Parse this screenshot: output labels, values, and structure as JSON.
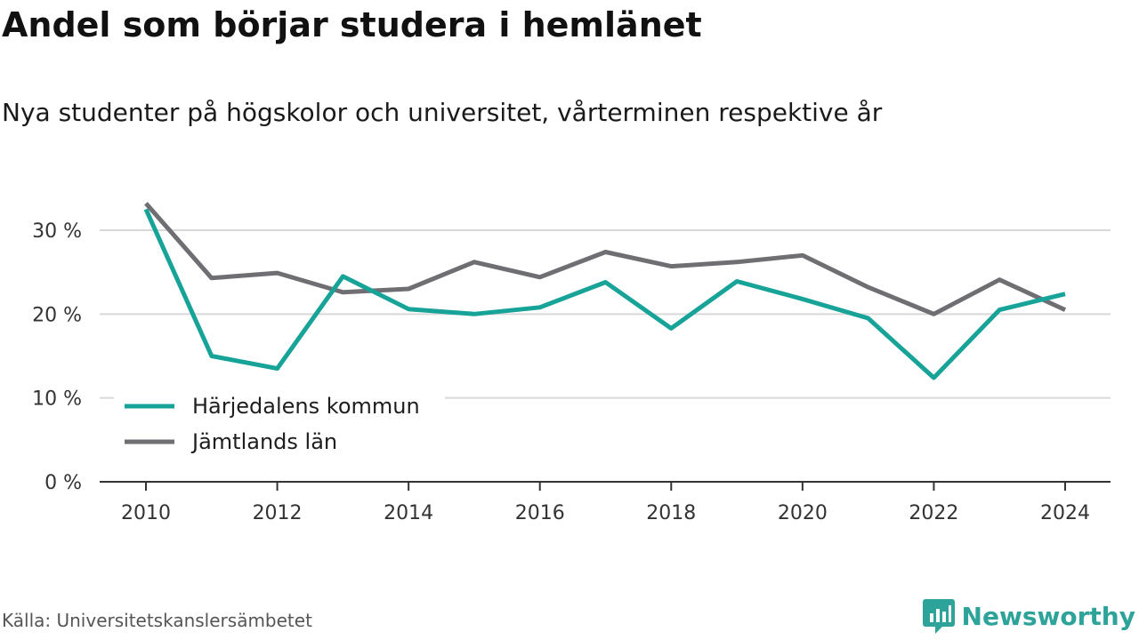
{
  "title": "Andel som börjar studera i hemlänet",
  "subtitle": "Nya studenter på högskolor och universitet, vårterminen respektive år",
  "source": "Källa: Universitetskanslersämbetet",
  "brand": "Newsworthy",
  "colors": {
    "teal": "#17a398",
    "gray": "#6e6e73",
    "grid": "#d9d9d9",
    "axis": "#333333"
  },
  "chart_data": {
    "type": "line",
    "x": [
      2010,
      2011,
      2012,
      2013,
      2014,
      2015,
      2016,
      2017,
      2018,
      2019,
      2020,
      2021,
      2022,
      2023,
      2024
    ],
    "series": [
      {
        "name": "Härjedalens kommun",
        "color": "#17a398",
        "values": [
          32.5,
          15.0,
          13.5,
          24.5,
          20.6,
          20.0,
          20.8,
          23.8,
          18.3,
          23.9,
          21.8,
          19.5,
          12.4,
          20.5,
          22.4
        ]
      },
      {
        "name": "Jämtlands län",
        "color": "#6e6e73",
        "values": [
          33.2,
          24.3,
          24.9,
          22.6,
          23.0,
          26.2,
          24.4,
          27.4,
          25.7,
          26.2,
          27.0,
          23.2,
          20.0,
          24.1,
          20.5
        ]
      }
    ],
    "xticks": [
      "2010",
      "2012",
      "2014",
      "2016",
      "2018",
      "2020",
      "2022",
      "2024"
    ],
    "yticks": [
      "0 %",
      "10 %",
      "20 %",
      "30 %"
    ],
    "ytick_values": [
      0,
      10,
      20,
      30
    ],
    "xlim": [
      2010,
      2024
    ],
    "ylim": [
      0,
      30
    ],
    "grid": true,
    "legend": "bottom-left"
  }
}
